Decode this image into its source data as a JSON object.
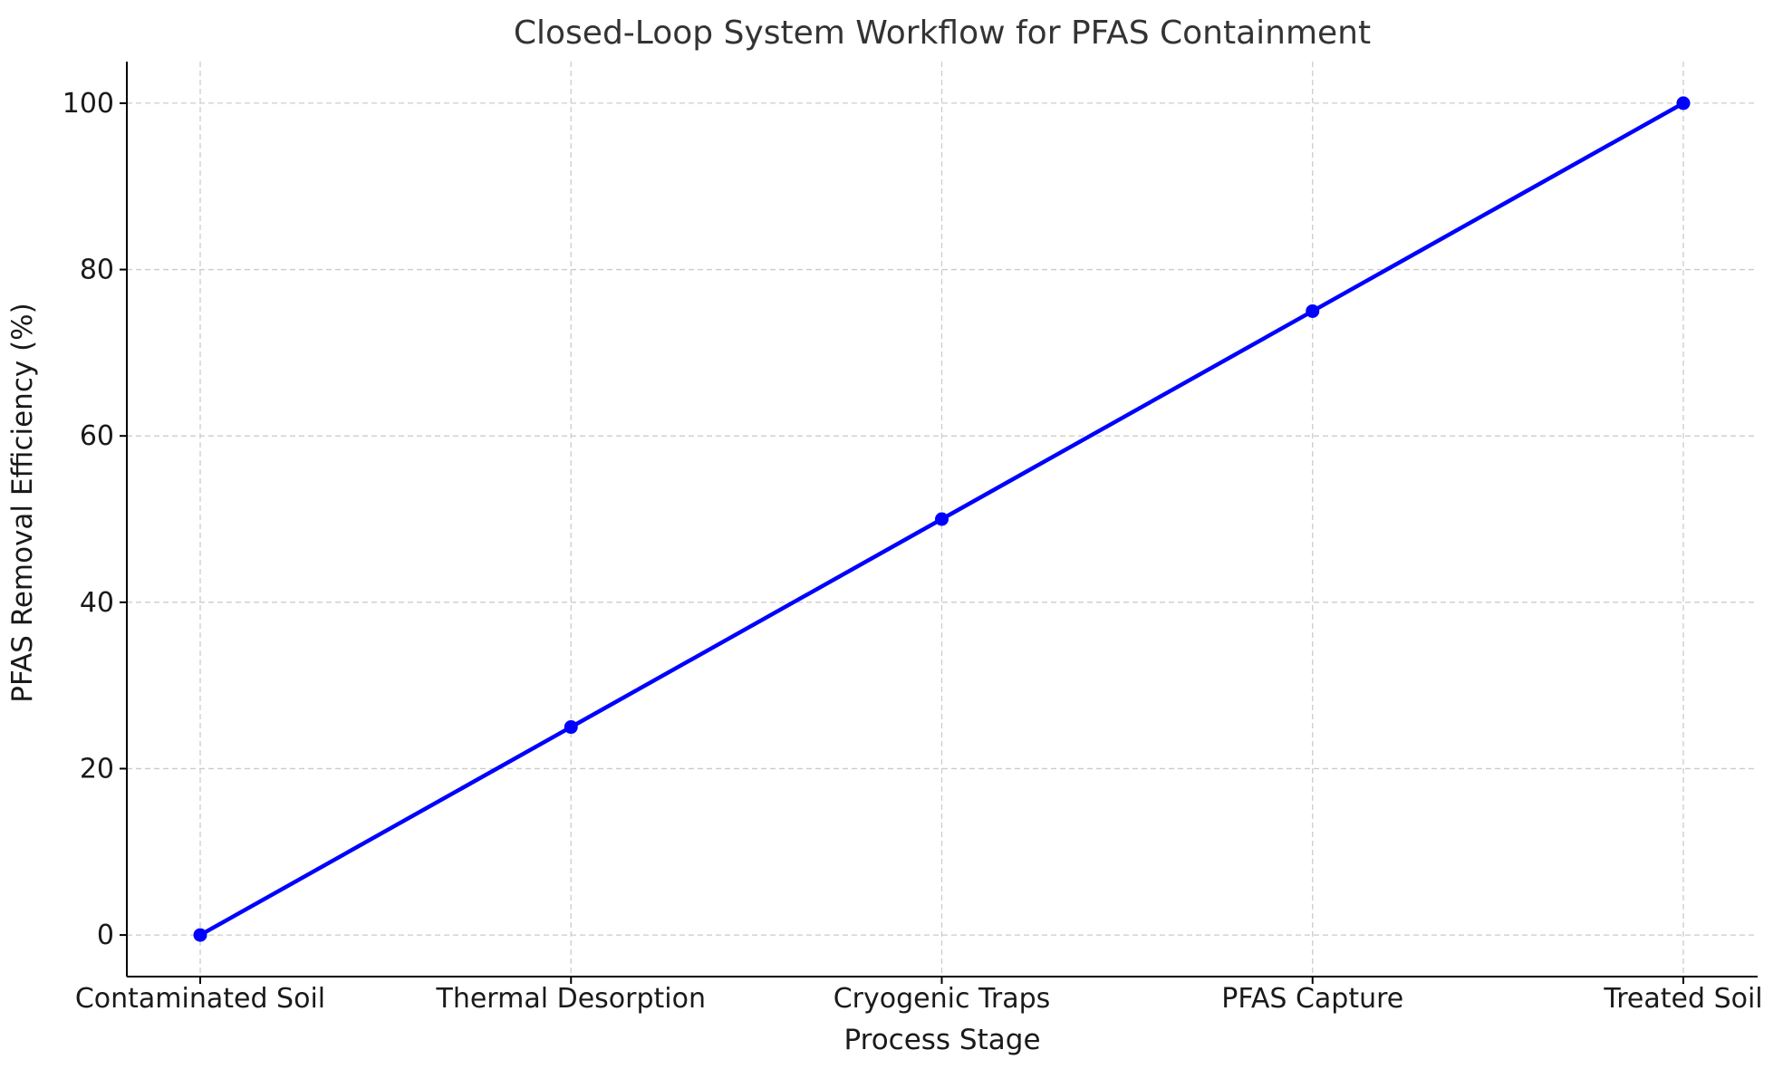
{
  "chart_data": {
    "type": "line",
    "title": "Closed-Loop System Workflow for PFAS Containment",
    "xlabel": "Process Stage",
    "ylabel": "PFAS Removal Efficiency (%)",
    "categories": [
      "Contaminated Soil",
      "Thermal Desorption",
      "Cryogenic Traps",
      "PFAS Capture",
      "Treated Soil"
    ],
    "series": [
      {
        "values": [
          0,
          25,
          50,
          75,
          100
        ],
        "color": "#0000ff",
        "marker": "circle"
      }
    ],
    "ylim": [
      -5,
      105
    ],
    "yticks": [
      0,
      20,
      40,
      60,
      80,
      100
    ],
    "grid": true,
    "legend": "none"
  }
}
